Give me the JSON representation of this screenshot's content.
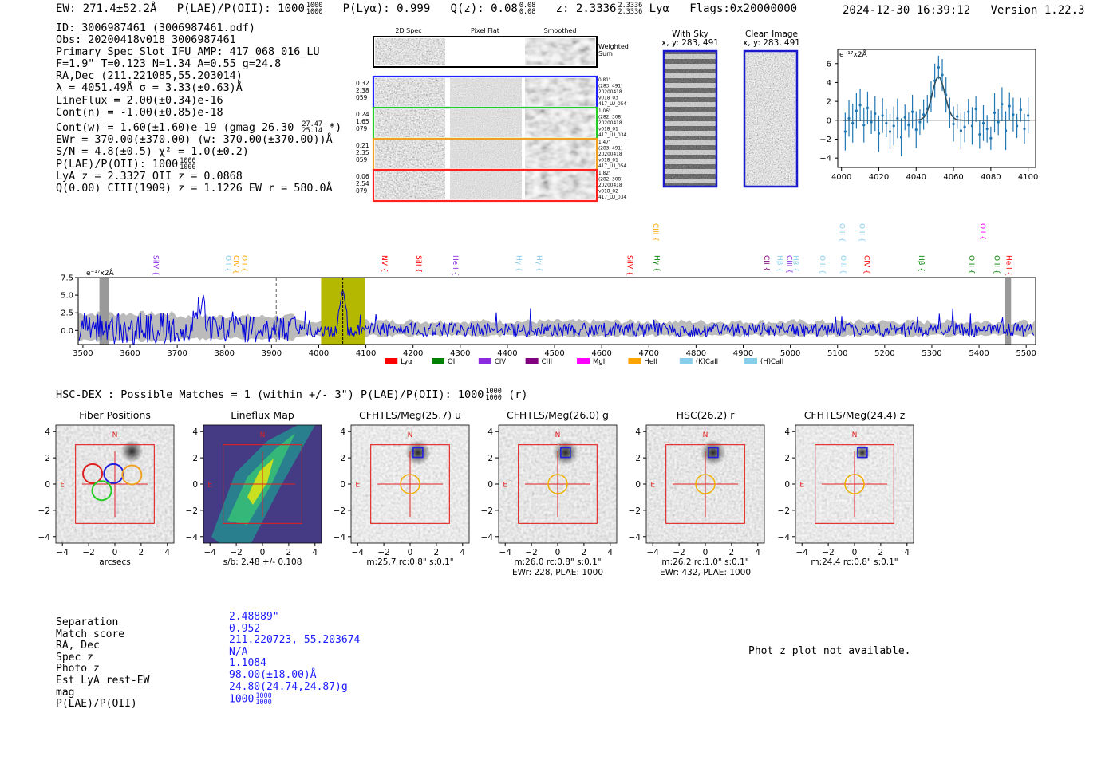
{
  "header": {
    "ew": "EW: 271.4±52.2Å",
    "plae_label": "P(LAE)/P(OII): 1000",
    "plae_hi": "1000",
    "plae_lo": "1000",
    "plya": "P(Lyα): 0.999",
    "qz_label": "Q(z): 0.08",
    "qz_hi": "0.08",
    "qz_lo": "0.08",
    "z_label": "z: 2.3336",
    "z_hi": "2.3336",
    "z_lo": "2.3336",
    "z_line": "Lyα",
    "flags": "Flags:0x20000000",
    "datetime": "2024-12-30 16:39:12",
    "version": "Version 1.22.3"
  },
  "info": {
    "id": "ID: 3006987461 (3006987461.pdf)",
    "obs": "Obs: 20200418v018_3006987461",
    "primary": "Primary Spec_Slot_IFU_AMP: 417_068_016_LU",
    "fwhm": "F=1.9\"  T=0.123  N=1.34  A=0.55  g=24.8",
    "radec": "RA,Dec (211.221085,55.203014)",
    "lambda": "λ = 4051.49Å  σ = 3.33(±0.63)Å",
    "lineflux": "LineFlux = 2.00(±0.34)e-16",
    "contn": "Cont(n) = -1.00(±0.85)e-18",
    "contw": "Cont(w) = 1.60(±1.60)e-19 (gmag 26.30",
    "contw_hi": "27.47",
    "contw_lo": "25.14",
    "contw_end": "*)",
    "ewr": "EWr = 370.00(±370.00) (w: 370.00(±370.00))Å",
    "sn": "S/N = 4.8(±0.5)  χ² = 1.0(±0.2)",
    "plae": "P(LAE)/P(OII): 1000",
    "plae_hi": "1000",
    "plae_lo": "1000",
    "lya": "LyA z = 2.3327  OII z = 0.0868",
    "q": "Q(0.00) CIII(1909) z = 1.1226  EW r = 580.0Å"
  },
  "spec2d": {
    "col_titles": [
      "2D Spec",
      "Pixel Flat",
      "Smoothed"
    ],
    "weighted_label": "Weighted Sum",
    "rows": [
      {
        "left": [
          "0.32",
          "2.38",
          "059"
        ],
        "right": [
          "0.81\"",
          "(283, 491)",
          "20200418",
          "v018_03",
          "417_LU_054"
        ],
        "color": "#2020ff"
      },
      {
        "left": [
          "0.24",
          "1.65",
          "079"
        ],
        "right": [
          "1.06\"",
          "(282, 308)",
          "20200418",
          "v018_01",
          "417_LU_034"
        ],
        "color": "#22cc22"
      },
      {
        "left": [
          "0.21",
          "2.35",
          "059"
        ],
        "right": [
          "1.47\"",
          "(283, 491)",
          "20200418",
          "v018_01",
          "417_LU_054"
        ],
        "color": "#f0a020"
      },
      {
        "left": [
          "0.06",
          "2.54",
          "079"
        ],
        "right": [
          "1.82\"",
          "(282, 308)",
          "20200418",
          "v018_02",
          "417_LU_034"
        ],
        "color": "#ff2020"
      }
    ]
  },
  "sky": {
    "with_sky_title": "With Sky",
    "with_sky_xy": "x, y: 283, 491",
    "clean_title": "Clean Image",
    "clean_xy": "x, y: 283, 491"
  },
  "zoom_chart": {
    "unit_label": "e⁻¹⁷x2Å",
    "xticks": [
      "4000",
      "4020",
      "4040",
      "4060",
      "4080",
      "4100"
    ],
    "yticks": [
      "6",
      "4",
      "2",
      "0",
      "−2",
      "−4"
    ]
  },
  "chart_data": [
    {
      "type": "scatter",
      "title": "",
      "xlabel": "",
      "ylabel": "e⁻¹⁷x2Å",
      "xlim": [
        3998,
        4104
      ],
      "ylim": [
        -5,
        7.5
      ],
      "x": [
        4002,
        4004,
        4006,
        4008,
        4010,
        4012,
        4014,
        4016,
        4018,
        4020,
        4022,
        4024,
        4026,
        4028,
        4030,
        4032,
        4034,
        4036,
        4038,
        4040,
        4042,
        4044,
        4046,
        4048,
        4050,
        4052,
        4054,
        4056,
        4058,
        4060,
        4062,
        4064,
        4066,
        4068,
        4070,
        4072,
        4074,
        4076,
        4078,
        4080,
        4082,
        4084,
        4086,
        4088,
        4090,
        4092,
        4094,
        4096,
        4098,
        4100
      ],
      "y": [
        -1.2,
        0.2,
        -0.3,
        1.0,
        1.6,
        -0.5,
        1.3,
        -0.2,
        0.7,
        -1.4,
        0.5,
        -0.3,
        -1.2,
        -0.6,
        0.2,
        -1.8,
        0.3,
        -0.5,
        0.9,
        -1.0,
        -0.2,
        0.6,
        1.2,
        2.5,
        4.2,
        5.6,
        4.8,
        2.7,
        0.8,
        -0.4,
        0.4,
        -1.1,
        -0.7,
        0.9,
        -0.6,
        1.2,
        -1.5,
        -0.3,
        -0.9,
        -1.9,
        0.8,
        -0.2,
        1.7,
        -1.1,
        1.5,
        0.6,
        -0.6,
        1.1,
        -0.9,
        0.5
      ],
      "fit_peak": 4.6,
      "fit_center": 4052,
      "fit_sigma": 3.4
    },
    {
      "type": "line",
      "title": "",
      "xlabel": "",
      "ylabel": "e⁻¹⁷x2Å",
      "xlim": [
        3490,
        5520
      ],
      "ylim": [
        -2,
        7.5
      ],
      "xticks": [
        "3500",
        "3600",
        "3700",
        "3800",
        "3900",
        "4000",
        "4100",
        "4200",
        "4300",
        "4400",
        "4500",
        "4600",
        "4700",
        "4800",
        "4900",
        "5000",
        "5100",
        "5200",
        "5300",
        "5400",
        "5500"
      ],
      "yticks": [
        "7.5",
        "5.0",
        "2.5",
        "0.0"
      ],
      "highlight_band": [
        4005,
        4098
      ],
      "marker_line": 4051,
      "dashed_line": 3910,
      "legend": [
        "Lyα",
        "OII",
        "CIV",
        "CIII",
        "MgII",
        "HeII",
        "(K)CaII",
        "(H)CaII"
      ],
      "legend_colors": [
        "#ff0000",
        "#008000",
        "#8a2be2",
        "#800080",
        "#ff00ff",
        "#ffa500",
        "#87ceeb",
        "#87ceeb"
      ],
      "line_labels": [
        {
          "name": "SiIV",
          "x": 3655,
          "color": "#8a2be2",
          "level": 0
        },
        {
          "name": "OII",
          "x": 3808,
          "color": "#87ceeb",
          "level": 0
        },
        {
          "name": "CIV",
          "x": 3825,
          "color": "#ffa500",
          "level": 0
        },
        {
          "name": "OII",
          "x": 3843,
          "color": "#ffa500",
          "level": 0
        },
        {
          "name": "NV",
          "x": 4140,
          "color": "#ff0000",
          "level": 0
        },
        {
          "name": "SiII",
          "x": 4212,
          "color": "#ff0000",
          "level": 0
        },
        {
          "name": "HeII",
          "x": 4290,
          "color": "#8a2be2",
          "level": 0
        },
        {
          "name": "Hγ",
          "x": 4425,
          "color": "#87ceeb",
          "level": 0
        },
        {
          "name": "Hγ",
          "x": 4468,
          "color": "#87ceeb",
          "level": 0
        },
        {
          "name": "SiIV",
          "x": 4660,
          "color": "#ff0000",
          "level": 0
        },
        {
          "name": "CIII",
          "x": 4715,
          "color": "#ffa500",
          "level": 1
        },
        {
          "name": "Hγ",
          "x": 4717,
          "color": "#008000",
          "level": 0
        },
        {
          "name": "CII",
          "x": 4950,
          "color": "#800080",
          "level": 0
        },
        {
          "name": "Hβ",
          "x": 4978,
          "color": "#87ceeb",
          "level": 0
        },
        {
          "name": "CIII",
          "x": 4998,
          "color": "#8a2be2",
          "level": 0
        },
        {
          "name": "Hβ",
          "x": 5012,
          "color": "#87ceeb",
          "level": 0
        },
        {
          "name": "OIII",
          "x": 5068,
          "color": "#87ceeb",
          "level": 0
        },
        {
          "name": "OIII",
          "x": 5110,
          "color": "#87ceeb",
          "level": 1
        },
        {
          "name": "OIII",
          "x": 5112,
          "color": "#87ceeb",
          "level": 0
        },
        {
          "name": "OIII",
          "x": 5152,
          "color": "#87ceeb",
          "level": 1
        },
        {
          "name": "CIV",
          "x": 5162,
          "color": "#ff0000",
          "level": 0
        },
        {
          "name": "Hβ",
          "x": 5278,
          "color": "#008000",
          "level": 0
        },
        {
          "name": "OIII",
          "x": 5385,
          "color": "#008000",
          "level": 0
        },
        {
          "name": "OII",
          "x": 5408,
          "color": "#ff00ff",
          "level": 1
        },
        {
          "name": "OIII",
          "x": 5438,
          "color": "#008000",
          "level": 0
        },
        {
          "name": "HeII",
          "x": 5463,
          "color": "#ff0000",
          "level": 0
        }
      ]
    }
  ],
  "hsc": {
    "title": "HSC-DEX : Possible Matches = 1 (within +/- 3\")  P(LAE)/P(OII): 1000",
    "plae_hi": "1000",
    "plae_lo": "1000",
    "suffix": "(r)",
    "panels": [
      {
        "title": "Fiber Positions",
        "caption1": "arcsecs",
        "caption2": ""
      },
      {
        "title": "Lineflux Map",
        "caption1": "s/b: 2.48 +/- 0.108",
        "caption2": ""
      },
      {
        "title": "CFHTLS/Meg(25.7) u",
        "caption1": "m:25.7 rc:0.8\"  s:0.1\"",
        "caption2": ""
      },
      {
        "title": "CFHTLS/Meg(26.0) g",
        "caption1": "m:26.0 rc:0.8\"  s:0.1\"",
        "caption2": "EWr: 228, PLAE: 1000"
      },
      {
        "title": "HSC(26.2) r",
        "caption1": "m:26.2 rc:1.0\"  s:0.1\"",
        "caption2": "EWr: 432, PLAE: 1000"
      },
      {
        "title": "CFHTLS/Meg(24.4) z",
        "caption1": "m:24.4 rc:0.8\"  s:0.1\"",
        "caption2": ""
      }
    ],
    "axis_ticks": [
      "−4",
      "−2",
      "0",
      "2",
      "4"
    ],
    "compass_n": "N",
    "compass_e": "E"
  },
  "match": {
    "labels": [
      "Separation",
      "Match score",
      "RA, Dec",
      "Spec z",
      "Photo z",
      "Est LyA rest-EW",
      "mag",
      "P(LAE)/P(OII)"
    ],
    "values": [
      "2.48889\"",
      "0.952",
      "211.220723, 55.203674",
      "N/A",
      "1.1084",
      "98.00(±18.00)Å",
      "24.80(24.74,24.87)g",
      "1000"
    ],
    "plae_hi": "1000",
    "plae_lo": "1000",
    "photz_note": "Phot z plot not available."
  }
}
